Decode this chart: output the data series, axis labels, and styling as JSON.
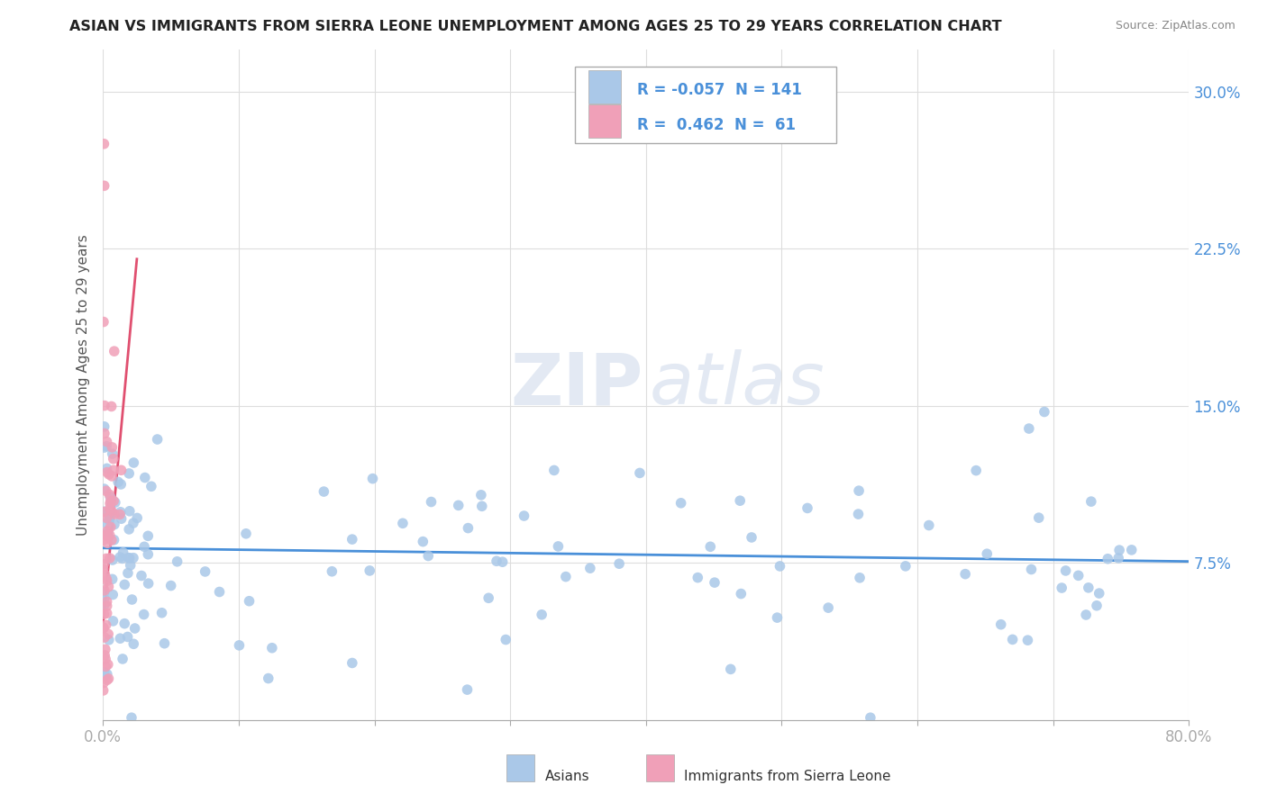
{
  "title": "ASIAN VS IMMIGRANTS FROM SIERRA LEONE UNEMPLOYMENT AMONG AGES 25 TO 29 YEARS CORRELATION CHART",
  "source": "Source: ZipAtlas.com",
  "xlim": [
    0.0,
    0.8
  ],
  "ylim": [
    0.0,
    0.32
  ],
  "ylabel": "Unemployment Among Ages 25 to 29 years",
  "watermark_zip": "ZIP",
  "watermark_atlas": "atlas",
  "legend_r_asian": "-0.057",
  "legend_n_asian": "141",
  "legend_r_sierra": "0.462",
  "legend_n_sierra": "61",
  "color_asian": "#aac8e8",
  "color_sierra": "#f0a0b8",
  "color_asian_line": "#4a90d9",
  "color_sierra_line": "#e05070",
  "background_color": "#ffffff",
  "grid_color": "#dddddd",
  "tick_label_color": "#4a90d9",
  "yticks": [
    0.0,
    0.075,
    0.15,
    0.225,
    0.3
  ],
  "ytick_labels": [
    "",
    "7.5%",
    "15.0%",
    "22.5%",
    "30.0%"
  ],
  "xticks": [
    0.0,
    0.1,
    0.2,
    0.3,
    0.4,
    0.5,
    0.6,
    0.7,
    0.8
  ],
  "xtick_labels": [
    "0.0%",
    "",
    "",
    "",
    "",
    "",
    "",
    "",
    "80.0%"
  ]
}
